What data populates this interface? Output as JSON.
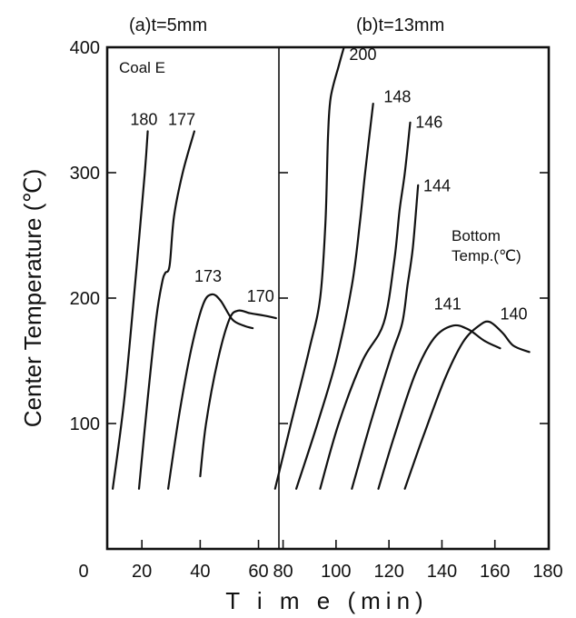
{
  "chart_data": {
    "type": "line",
    "ylabel": "Center Temperature  (℃)",
    "xlabel": "T i m e  (min)",
    "ylim": [
      40,
      400
    ],
    "yticks": [
      {
        "value": 100,
        "label": "100"
      },
      {
        "value": 200,
        "label": "200"
      },
      {
        "value": 300,
        "label": "300"
      },
      {
        "value": 400,
        "label": "400"
      }
    ],
    "panels": [
      {
        "id": "a",
        "title": "(a)t=5mm",
        "annotation": "Coal E",
        "xlim": [
          0,
          67
        ],
        "xticks": [
          {
            "value": 0,
            "label": "0"
          },
          {
            "value": 20,
            "label": "20"
          },
          {
            "value": 40,
            "label": "40"
          },
          {
            "value": 60,
            "label": "60"
          }
        ],
        "series": [
          {
            "name": "180",
            "label_at": [
              16,
              338
            ],
            "points": [
              [
                10,
                48
              ],
              [
                14,
                120
              ],
              [
                18,
                220
              ],
              [
                21,
                300
              ],
              [
                22,
                333
              ]
            ]
          },
          {
            "name": "177",
            "label_at": [
              29,
              338
            ],
            "points": [
              [
                19,
                48
              ],
              [
                22,
                120
              ],
              [
                25,
                185
              ],
              [
                27,
                213
              ],
              [
                28,
                220
              ],
              [
                29.5,
                226
              ],
              [
                31,
                265
              ],
              [
                34,
                300
              ],
              [
                38,
                333
              ]
            ]
          },
          {
            "name": "173",
            "label_at": [
              38,
              213
            ],
            "points": [
              [
                29,
                48
              ],
              [
                33,
                110
              ],
              [
                37,
                160
              ],
              [
                41,
                195
              ],
              [
                44,
                203
              ],
              [
                47,
                198
              ],
              [
                51,
                183
              ],
              [
                55,
                178
              ],
              [
                58,
                176
              ]
            ]
          },
          {
            "name": "170",
            "label_at": [
              56,
              197
            ],
            "points": [
              [
                40,
                58
              ],
              [
                42,
                100
              ],
              [
                46,
                150
              ],
              [
                50,
                183
              ],
              [
                53,
                190
              ],
              [
                57,
                188
              ],
              [
                62,
                186
              ],
              [
                66,
                184
              ]
            ]
          }
        ]
      },
      {
        "id": "b",
        "title": "(b)t=13mm",
        "annotation": "Bottom\nTemp.(℃)",
        "xlim": [
          75,
          180
        ],
        "xticks": [
          {
            "value": 80,
            "label": "80"
          },
          {
            "value": 100,
            "label": "100"
          },
          {
            "value": 120,
            "label": "120"
          },
          {
            "value": 140,
            "label": "140"
          },
          {
            "value": 160,
            "label": "160"
          },
          {
            "value": 180,
            "label": "180"
          }
        ],
        "series": [
          {
            "name": "200",
            "label_at": [
              105,
              390
            ],
            "points": [
              [
                77,
                48
              ],
              [
                83,
                100
              ],
              [
                90,
                160
              ],
              [
                94,
                200
              ],
              [
                96,
                260
              ],
              [
                97,
                330
              ],
              [
                98,
                360
              ],
              [
                101,
                385
              ],
              [
                103,
                400
              ]
            ]
          },
          {
            "name": "148",
            "label_at": [
              118,
              356
            ],
            "points": [
              [
                85,
                48
              ],
              [
                93,
                100
              ],
              [
                100,
                150
              ],
              [
                106,
                210
              ],
              [
                109,
                260
              ],
              [
                111,
                300
              ],
              [
                114,
                355
              ]
            ]
          },
          {
            "name": "146",
            "label_at": [
              130,
              336
            ],
            "points": [
              [
                94,
                48
              ],
              [
                101,
                100
              ],
              [
                110,
                150
              ],
              [
                118,
                180
              ],
              [
                122,
                230
              ],
              [
                124,
                270
              ],
              [
                126,
                300
              ],
              [
                128,
                340
              ]
            ]
          },
          {
            "name": "144",
            "label_at": [
              133,
              285
            ],
            "points": [
              [
                106,
                48
              ],
              [
                113,
                100
              ],
              [
                121,
                155
              ],
              [
                125,
                180
              ],
              [
                127,
                210
              ],
              [
                129,
                240
              ],
              [
                131,
                290
              ]
            ]
          },
          {
            "name": "141",
            "label_at": [
              137,
              191
            ],
            "points": [
              [
                116,
                48
              ],
              [
                122,
                90
              ],
              [
                130,
                140
              ],
              [
                137,
                168
              ],
              [
                144,
                178
              ],
              [
                150,
                175
              ],
              [
                156,
                166
              ],
              [
                162,
                160
              ]
            ]
          },
          {
            "name": "140",
            "label_at": [
              162,
              183
            ],
            "points": [
              [
                126,
                48
              ],
              [
                133,
                90
              ],
              [
                141,
                135
              ],
              [
                148,
                165
              ],
              [
                154,
                178
              ],
              [
                158,
                181
              ],
              [
                163,
                172
              ],
              [
                167,
                162
              ],
              [
                173,
                157
              ]
            ]
          }
        ]
      }
    ]
  }
}
